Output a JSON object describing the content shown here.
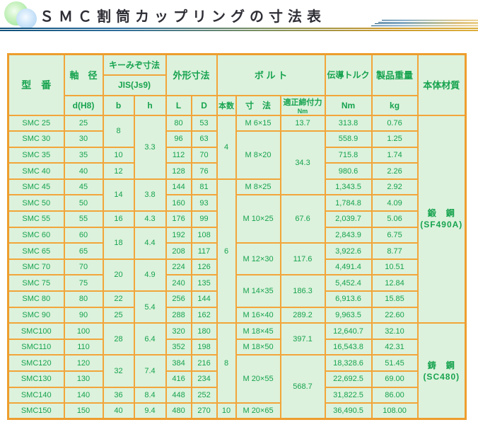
{
  "page": {
    "title": "ＳＭＣ割筒カップリングの寸法表"
  },
  "colors": {
    "border_orange": "#f2a53a",
    "cell_green": "#dcf2dc",
    "cell_yellow": "#fbf8d0",
    "text_green": "#17a34f",
    "rule_blue": "#11517c",
    "rule_gold": "#ddb03c",
    "logo_green": "#93e394",
    "logo_blue": "#a3cdf0"
  },
  "table": {
    "head": {
      "model": "型　番",
      "shaft": "軸　径",
      "shaft_sub": "d(H8)",
      "keyway": "キーみぞ寸法",
      "keyway_std": "JIS(Js9)",
      "keyway_b": "b",
      "keyway_h": "h",
      "outer": "外形寸法",
      "outer_l": "L",
      "outer_d": "D",
      "bolt": "ボ ル ト",
      "bolt_qty": "本数",
      "bolt_size": "寸　法",
      "bolt_tight": "適正締付力",
      "bolt_tight_unit": "Nm",
      "torque": "伝導トルク",
      "torque_unit": "Nm",
      "weight": "製品重量",
      "weight_unit": "kg",
      "material": "本体材質"
    },
    "columns": [
      {
        "key": "model",
        "segments": [
          {
            "v": "SMC 25"
          },
          {
            "v": "SMC 30"
          },
          {
            "v": "SMC 35"
          },
          {
            "v": "SMC 40"
          },
          {
            "v": "SMC 45"
          },
          {
            "v": "SMC 50"
          },
          {
            "v": "SMC 55"
          },
          {
            "v": "SMC 60"
          },
          {
            "v": "SMC 65"
          },
          {
            "v": "SMC 70"
          },
          {
            "v": "SMC 75"
          },
          {
            "v": "SMC 80"
          },
          {
            "v": "SMC 90"
          },
          {
            "v": "SMC100"
          },
          {
            "v": "SMC110"
          },
          {
            "v": "SMC120"
          },
          {
            "v": "SMC130"
          },
          {
            "v": "SMC140"
          },
          {
            "v": "SMC150"
          }
        ]
      },
      {
        "key": "d",
        "segments": [
          {
            "v": "25"
          },
          {
            "v": "30"
          },
          {
            "v": "35"
          },
          {
            "v": "40"
          },
          {
            "v": "45"
          },
          {
            "v": "50"
          },
          {
            "v": "55"
          },
          {
            "v": "60"
          },
          {
            "v": "65"
          },
          {
            "v": "70"
          },
          {
            "v": "75"
          },
          {
            "v": "80"
          },
          {
            "v": "90"
          },
          {
            "v": "100"
          },
          {
            "v": "110"
          },
          {
            "v": "120"
          },
          {
            "v": "130"
          },
          {
            "v": "140"
          },
          {
            "v": "150"
          }
        ]
      },
      {
        "key": "b",
        "segments": [
          {
            "v": "8",
            "span": 2
          },
          {
            "v": "10"
          },
          {
            "v": "12"
          },
          {
            "v": "14",
            "span": 2
          },
          {
            "v": "16"
          },
          {
            "v": "18",
            "span": 2
          },
          {
            "v": "20",
            "span": 2
          },
          {
            "v": "22"
          },
          {
            "v": "25"
          },
          {
            "v": "28",
            "span": 2
          },
          {
            "v": "32",
            "span": 2
          },
          {
            "v": "36"
          },
          {
            "v": "40"
          }
        ]
      },
      {
        "key": "h",
        "segments": [
          {
            "v": "3.3",
            "span": 4
          },
          {
            "v": "3.8",
            "span": 2
          },
          {
            "v": "4.3"
          },
          {
            "v": "4.4",
            "span": 2
          },
          {
            "v": "4.9",
            "span": 2
          },
          {
            "v": "5.4",
            "span": 2
          },
          {
            "v": "6.4",
            "span": 2
          },
          {
            "v": "7.4",
            "span": 2
          },
          {
            "v": "8.4"
          },
          {
            "v": "9.4"
          }
        ]
      },
      {
        "key": "L",
        "segments": [
          {
            "v": "80"
          },
          {
            "v": "96"
          },
          {
            "v": "112"
          },
          {
            "v": "128"
          },
          {
            "v": "144"
          },
          {
            "v": "160"
          },
          {
            "v": "176"
          },
          {
            "v": "192"
          },
          {
            "v": "208"
          },
          {
            "v": "224"
          },
          {
            "v": "240"
          },
          {
            "v": "256"
          },
          {
            "v": "288"
          },
          {
            "v": "320"
          },
          {
            "v": "352"
          },
          {
            "v": "384"
          },
          {
            "v": "416"
          },
          {
            "v": "448"
          },
          {
            "v": "480"
          }
        ]
      },
      {
        "key": "D",
        "segments": [
          {
            "v": "53"
          },
          {
            "v": "63"
          },
          {
            "v": "70"
          },
          {
            "v": "76"
          },
          {
            "v": "81"
          },
          {
            "v": "93"
          },
          {
            "v": "99"
          },
          {
            "v": "108"
          },
          {
            "v": "117"
          },
          {
            "v": "126"
          },
          {
            "v": "135"
          },
          {
            "v": "144"
          },
          {
            "v": "162"
          },
          {
            "v": "180"
          },
          {
            "v": "198"
          },
          {
            "v": "216"
          },
          {
            "v": "234"
          },
          {
            "v": "252"
          },
          {
            "v": "270"
          }
        ]
      },
      {
        "key": "qty",
        "segments": [
          {
            "v": "4",
            "span": 4
          },
          {
            "v": "6",
            "span": 9
          },
          {
            "v": "8",
            "span": 5
          },
          {
            "v": "10"
          }
        ]
      },
      {
        "key": "size",
        "segments": [
          {
            "v": "M 6×15"
          },
          {
            "v": "M 8×20",
            "span": 3
          },
          {
            "v": "M 8×25"
          },
          {
            "v": "M 10×25",
            "span": 3
          },
          {
            "v": "M 12×30",
            "span": 2
          },
          {
            "v": "M 14×35",
            "span": 2
          },
          {
            "v": "M 16×40"
          },
          {
            "v": "M 18×45"
          },
          {
            "v": "M 18×50"
          },
          {
            "v": "M 20×55",
            "span": 3
          },
          {
            "v": "M 20×65"
          }
        ]
      },
      {
        "key": "tight",
        "segments": [
          {
            "v": "13.7"
          },
          {
            "v": "34.3",
            "span": 4
          },
          {
            "v": "67.6",
            "span": 3
          },
          {
            "v": "117.6",
            "span": 2
          },
          {
            "v": "186.3",
            "span": 2
          },
          {
            "v": "289.2"
          },
          {
            "v": "397.1",
            "span": 2
          },
          {
            "v": "568.7",
            "span": 4
          }
        ]
      },
      {
        "key": "torque",
        "segments": [
          {
            "v": "313.8"
          },
          {
            "v": "558.9"
          },
          {
            "v": "715.8"
          },
          {
            "v": "980.6"
          },
          {
            "v": "1,343.5"
          },
          {
            "v": "1,784.8"
          },
          {
            "v": "2,039.7"
          },
          {
            "v": "2,843.9"
          },
          {
            "v": "3,922.6"
          },
          {
            "v": "4,491.4"
          },
          {
            "v": "5,452.4"
          },
          {
            "v": "6,913.6"
          },
          {
            "v": "9,963.5"
          },
          {
            "v": "12,640.7"
          },
          {
            "v": "16,543.8"
          },
          {
            "v": "18,328.6"
          },
          {
            "v": "22,692.5"
          },
          {
            "v": "31,822.5"
          },
          {
            "v": "36,490.5"
          }
        ]
      },
      {
        "key": "weight",
        "segments": [
          {
            "v": "0.76"
          },
          {
            "v": "1.25"
          },
          {
            "v": "1.74"
          },
          {
            "v": "2.26"
          },
          {
            "v": "2.92"
          },
          {
            "v": "4.09"
          },
          {
            "v": "5.06"
          },
          {
            "v": "6.75"
          },
          {
            "v": "8.77"
          },
          {
            "v": "10.51"
          },
          {
            "v": "12.84"
          },
          {
            "v": "15.85"
          },
          {
            "v": "22.60"
          },
          {
            "v": "32.10"
          },
          {
            "v": "42.31"
          },
          {
            "v": "51.45"
          },
          {
            "v": "69.00"
          },
          {
            "v": "86.00"
          },
          {
            "v": "108.00"
          }
        ]
      },
      {
        "key": "material",
        "segments": [
          {
            "lines": [
              "鍛　鋼",
              "(SF490A)"
            ],
            "span": 13
          },
          {
            "lines": [
              "鋳　鋼",
              "(SC480)"
            ],
            "span": 6
          }
        ]
      }
    ]
  }
}
